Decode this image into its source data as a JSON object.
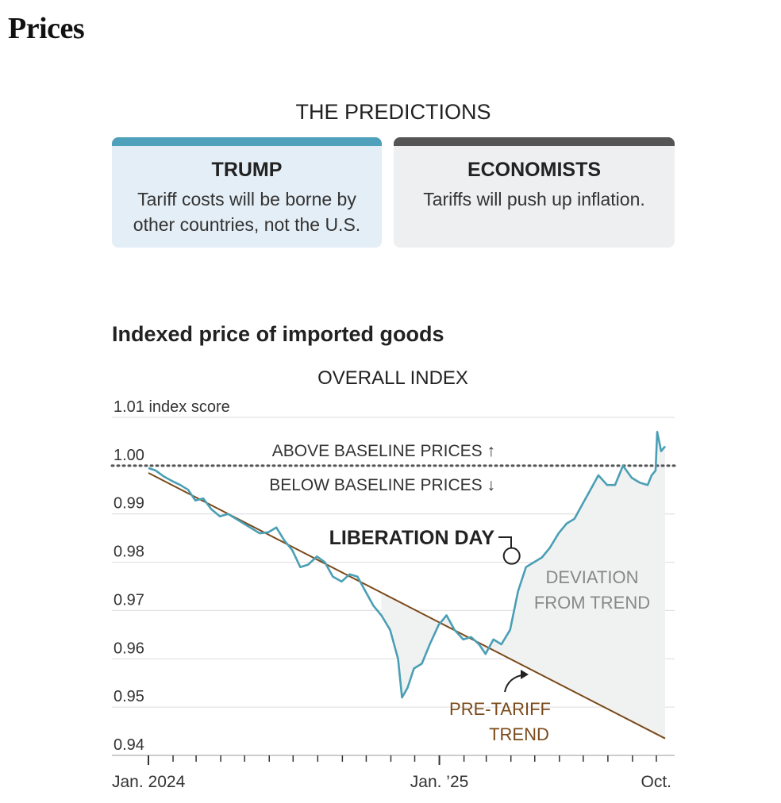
{
  "page": {
    "title": "Prices"
  },
  "predictions": {
    "heading": "THE PREDICTIONS",
    "cards": [
      {
        "title": "TRUMP",
        "text": "Tariff costs will be borne by other countries, not the U.S."
      },
      {
        "title": "ECONOMISTS",
        "text": "Tariffs will push up inflation."
      }
    ]
  },
  "colors": {
    "trump_accent": "#4ea0bb",
    "economists_accent": "#555555",
    "index_line": "#4a9fb5",
    "trend_line": "#7a4a1a",
    "annotation_text": "#7a4a1a",
    "deviation_fill": "#f0f2f2"
  },
  "chart_data": {
    "type": "line",
    "title": "Indexed price of imported goods",
    "subtitle": "OVERALL INDEX",
    "ylabel": "index score",
    "ylim": [
      0.94,
      1.01
    ],
    "yticks": [
      0.94,
      0.95,
      0.96,
      0.97,
      0.98,
      0.99,
      1.0,
      1.01
    ],
    "ytick_labels": [
      "0.94",
      "0.95",
      "0.96",
      "0.97",
      "0.98",
      "0.99",
      "1.00",
      "1.01 index score"
    ],
    "xlim": [
      "2024-01-01",
      "2025-10-15"
    ],
    "xtick_labels": [
      {
        "date": "2024-01-01",
        "label": "Jan. 2024"
      },
      {
        "date": "2025-01-01",
        "label": "Jan. ’25"
      },
      {
        "date": "2025-10-01",
        "label": "Oct."
      }
    ],
    "grid": true,
    "baseline": 1.0,
    "series": [
      {
        "points": [
          [
            "2024-01-01",
            0.9995
          ],
          [
            "2024-01-10",
            0.999
          ],
          [
            "2024-01-20",
            0.9978
          ],
          [
            "2024-01-31",
            0.9968
          ],
          [
            "2024-02-10",
            0.996
          ],
          [
            "2024-02-20",
            0.995
          ],
          [
            "2024-02-29",
            0.9928
          ],
          [
            "2024-03-10",
            0.9932
          ],
          [
            "2024-03-20",
            0.991
          ],
          [
            "2024-03-31",
            0.9895
          ],
          [
            "2024-04-10",
            0.99
          ],
          [
            "2024-04-20",
            0.989
          ],
          [
            "2024-04-30",
            0.988
          ],
          [
            "2024-05-10",
            0.987
          ],
          [
            "2024-05-20",
            0.986
          ],
          [
            "2024-05-31",
            0.9862
          ],
          [
            "2024-06-10",
            0.9872
          ],
          [
            "2024-06-20",
            0.9845
          ],
          [
            "2024-06-30",
            0.9825
          ],
          [
            "2024-07-10",
            0.979
          ],
          [
            "2024-07-20",
            0.9795
          ],
          [
            "2024-07-31",
            0.9812
          ],
          [
            "2024-08-10",
            0.98
          ],
          [
            "2024-08-20",
            0.977
          ],
          [
            "2024-08-31",
            0.976
          ],
          [
            "2024-09-10",
            0.9775
          ],
          [
            "2024-09-20",
            0.977
          ],
          [
            "2024-09-30",
            0.974
          ],
          [
            "2024-10-10",
            0.971
          ],
          [
            "2024-10-20",
            0.969
          ],
          [
            "2024-10-31",
            0.966
          ],
          [
            "2024-11-10",
            0.96
          ],
          [
            "2024-11-15",
            0.952
          ],
          [
            "2024-11-22",
            0.954
          ],
          [
            "2024-11-30",
            0.958
          ],
          [
            "2024-12-10",
            0.959
          ],
          [
            "2024-12-20",
            0.963
          ],
          [
            "2024-12-31",
            0.967
          ],
          [
            "2025-01-10",
            0.969
          ],
          [
            "2025-01-20",
            0.966
          ],
          [
            "2025-01-31",
            0.964
          ],
          [
            "2025-02-10",
            0.9645
          ],
          [
            "2025-02-20",
            0.963
          ],
          [
            "2025-02-28",
            0.961
          ],
          [
            "2025-03-10",
            0.964
          ],
          [
            "2025-03-20",
            0.963
          ],
          [
            "2025-03-31",
            0.966
          ],
          [
            "2025-04-10",
            0.974
          ],
          [
            "2025-04-20",
            0.979
          ],
          [
            "2025-04-30",
            0.98
          ],
          [
            "2025-05-10",
            0.981
          ],
          [
            "2025-05-20",
            0.983
          ],
          [
            "2025-05-31",
            0.986
          ],
          [
            "2025-06-10",
            0.988
          ],
          [
            "2025-06-20",
            0.989
          ],
          [
            "2025-06-30",
            0.992
          ],
          [
            "2025-07-10",
            0.995
          ],
          [
            "2025-07-20",
            0.998
          ],
          [
            "2025-07-31",
            0.996
          ],
          [
            "2025-08-10",
            0.996
          ],
          [
            "2025-08-20",
            1.0
          ],
          [
            "2025-08-31",
            0.9975
          ],
          [
            "2025-09-10",
            0.9965
          ],
          [
            "2025-09-20",
            0.996
          ],
          [
            "2025-09-25",
            0.998
          ],
          [
            "2025-09-30",
            0.999
          ],
          [
            "2025-10-02",
            1.007
          ],
          [
            "2025-10-07",
            1.003
          ],
          [
            "2025-10-12",
            1.004
          ]
        ]
      }
    ],
    "trend": {
      "label": "PRE-TARIFF TREND",
      "points": [
        [
          "2024-01-01",
          0.9985
        ],
        [
          "2025-10-12",
          0.9435
        ]
      ]
    },
    "annotations": {
      "above": "ABOVE BASELINE PRICES ↑",
      "below": "BELOW BASELINE PRICES ↓",
      "event": {
        "label": "LIBERATION DAY",
        "date": "2025-04-02"
      },
      "deviation": "DEVIATION FROM TREND"
    }
  }
}
